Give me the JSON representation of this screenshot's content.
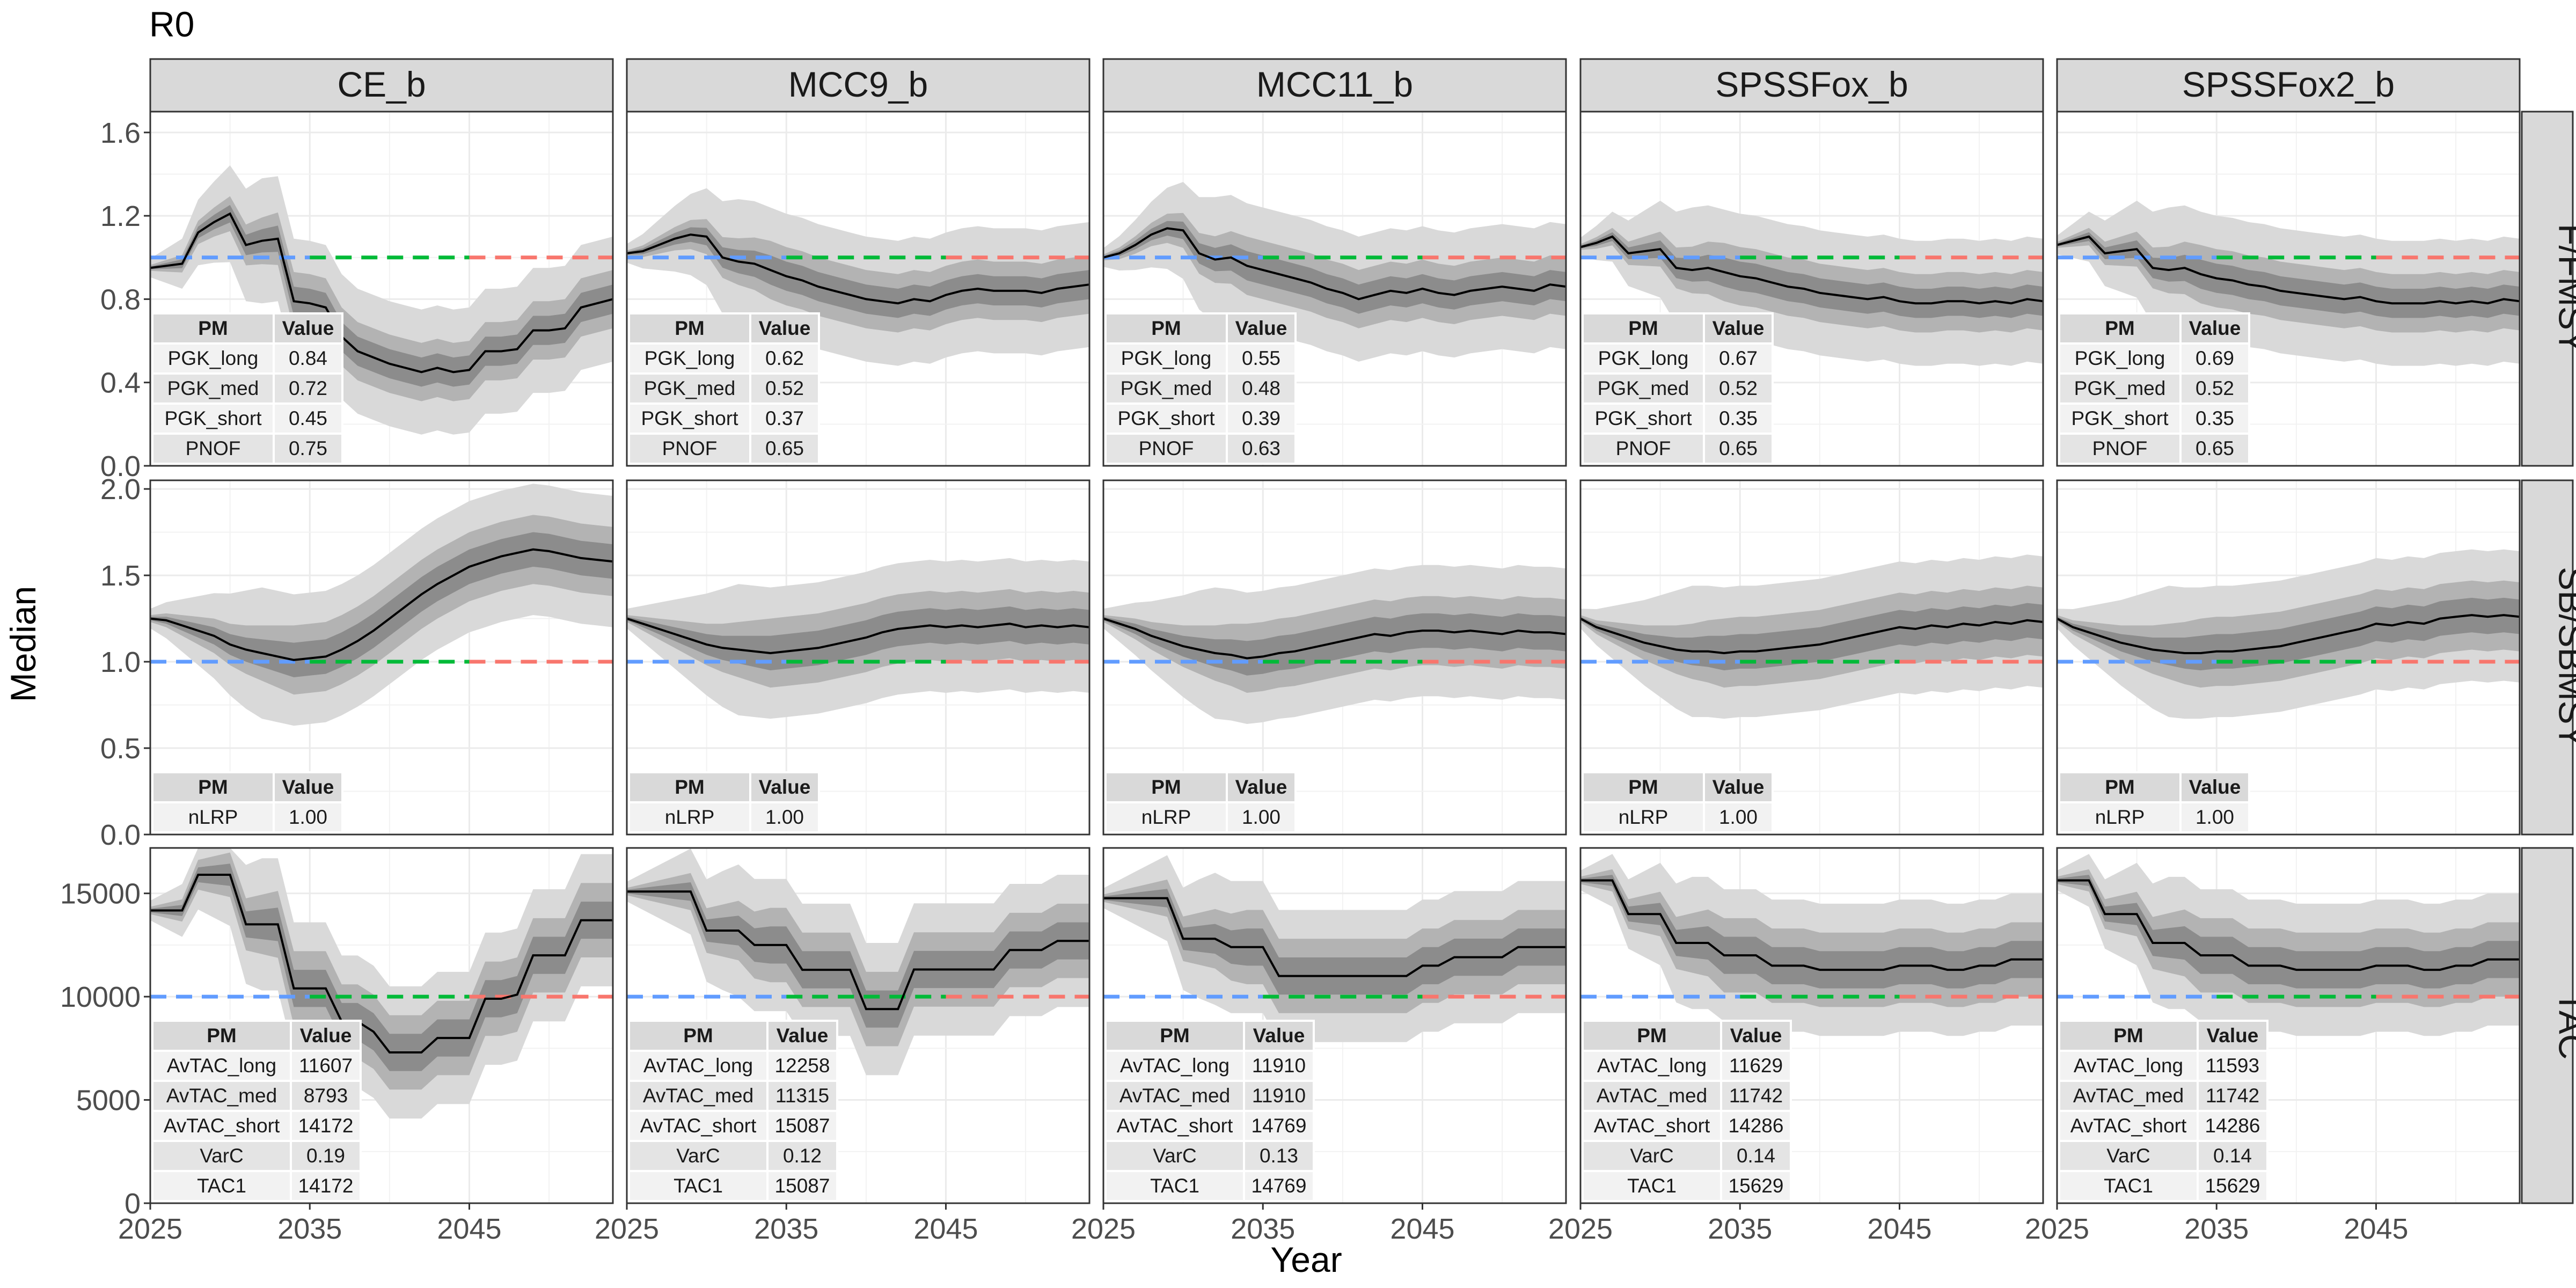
{
  "title": "R0",
  "chart_data": {
    "type": "line",
    "title": "R0",
    "xlabel": "Year",
    "ylabel": "Median",
    "x_ticks": [
      2025,
      2035,
      2045
    ],
    "xlim": [
      2025,
      2054
    ],
    "panels_cols": [
      "CE_b",
      "MCC9_b",
      "MCC11_b",
      "SPSSFox_b",
      "SPSSFox2_b"
    ],
    "panels_rows": [
      {
        "name": "F/FMSY",
        "ylim": [
          0,
          1.7
        ],
        "ticks": [
          "0.0",
          "0.4",
          "0.8",
          "1.2",
          "1.6"
        ],
        "tick_values": [
          0,
          0.4,
          0.8,
          1.2,
          1.6
        ],
        "ref": 1.0
      },
      {
        "name": "SB/SBMSY",
        "ylim": [
          0,
          2.05
        ],
        "ticks": [
          "0.0",
          "0.5",
          "1.0",
          "1.5",
          "2.0"
        ],
        "tick_values": [
          0,
          0.5,
          1.0,
          1.5,
          2.0
        ],
        "ref": 1.0
      },
      {
        "name": "TAC",
        "ylim": [
          0,
          17200
        ],
        "ticks": [
          "0",
          "5000",
          "10000",
          "15000"
        ],
        "tick_values": [
          0,
          5000,
          10000,
          15000
        ],
        "ref": 10000
      }
    ],
    "ref_line_colors": {
      "left": "#619cff",
      "middle": "#00ba38",
      "right": "#f8766d"
    },
    "band_colors": {
      "outer": "#d9d9d9",
      "mid": "#b3b3b3",
      "inner": "#8c8c8c"
    },
    "median": {
      "CE_b": {
        "F/FMSY": [
          0.95,
          0.96,
          0.97,
          1.12,
          1.17,
          1.21,
          1.06,
          1.08,
          1.09,
          0.79,
          0.78,
          0.76,
          0.62,
          0.55,
          0.52,
          0.49,
          0.47,
          0.45,
          0.47,
          0.45,
          0.46,
          0.55,
          0.55,
          0.56,
          0.65,
          0.65,
          0.66,
          0.76,
          0.78,
          0.8
        ],
        "SB/SBMSY": [
          1.25,
          1.24,
          1.21,
          1.18,
          1.15,
          1.1,
          1.07,
          1.05,
          1.03,
          1.01,
          1.02,
          1.03,
          1.07,
          1.12,
          1.18,
          1.25,
          1.32,
          1.39,
          1.45,
          1.5,
          1.55,
          1.58,
          1.61,
          1.63,
          1.65,
          1.64,
          1.62,
          1.6,
          1.59,
          1.58
        ],
        "TAC": [
          14172,
          14172,
          14172,
          15900,
          15900,
          15900,
          13500,
          13500,
          13500,
          10400,
          10400,
          10400,
          8793,
          8793,
          8300,
          7300,
          7300,
          7300,
          8000,
          8000,
          8000,
          9900,
          9900,
          10100,
          12000,
          12000,
          12000,
          13700,
          13700,
          13700
        ]
      },
      "MCC9_b": {
        "F/FMSY": [
          1.02,
          1.03,
          1.06,
          1.09,
          1.11,
          1.1,
          1.0,
          0.98,
          0.97,
          0.94,
          0.91,
          0.89,
          0.86,
          0.84,
          0.82,
          0.8,
          0.79,
          0.78,
          0.8,
          0.79,
          0.82,
          0.84,
          0.85,
          0.84,
          0.84,
          0.84,
          0.83,
          0.85,
          0.86,
          0.87
        ],
        "SB/SBMSY": [
          1.25,
          1.22,
          1.19,
          1.16,
          1.13,
          1.1,
          1.08,
          1.07,
          1.06,
          1.05,
          1.06,
          1.07,
          1.08,
          1.1,
          1.12,
          1.14,
          1.17,
          1.19,
          1.2,
          1.21,
          1.2,
          1.21,
          1.2,
          1.21,
          1.22,
          1.2,
          1.21,
          1.2,
          1.21,
          1.2
        ],
        "TAC": [
          15087,
          15087,
          15087,
          15087,
          15087,
          13200,
          13200,
          13200,
          12500,
          12500,
          12500,
          11300,
          11300,
          11300,
          11300,
          9400,
          9400,
          9400,
          11315,
          11315,
          11315,
          11315,
          11315,
          11315,
          12258,
          12258,
          12258,
          12700,
          12700,
          12700
        ]
      },
      "MCC11_b": {
        "F/FMSY": [
          1.0,
          1.02,
          1.06,
          1.11,
          1.14,
          1.13,
          1.02,
          0.99,
          1.0,
          0.96,
          0.94,
          0.92,
          0.9,
          0.88,
          0.85,
          0.83,
          0.8,
          0.82,
          0.84,
          0.83,
          0.85,
          0.83,
          0.82,
          0.84,
          0.85,
          0.86,
          0.85,
          0.84,
          0.87,
          0.86
        ],
        "SB/SBMSY": [
          1.25,
          1.22,
          1.19,
          1.15,
          1.12,
          1.09,
          1.07,
          1.05,
          1.04,
          1.02,
          1.03,
          1.05,
          1.06,
          1.08,
          1.1,
          1.12,
          1.14,
          1.16,
          1.15,
          1.17,
          1.18,
          1.18,
          1.17,
          1.18,
          1.17,
          1.16,
          1.18,
          1.17,
          1.17,
          1.16
        ],
        "TAC": [
          14769,
          14769,
          14769,
          14769,
          14769,
          12800,
          12800,
          12800,
          12400,
          12400,
          12400,
          11000,
          11000,
          11000,
          11000,
          11000,
          11000,
          11000,
          11000,
          11000,
          11500,
          11500,
          11910,
          11910,
          11910,
          11910,
          12400,
          12400,
          12400,
          12400
        ],
        "ref_unused": null
      },
      "SPSSFox_b": {
        "F/FMSY": [
          1.05,
          1.07,
          1.1,
          1.02,
          1.03,
          1.04,
          0.95,
          0.94,
          0.95,
          0.93,
          0.91,
          0.9,
          0.88,
          0.86,
          0.85,
          0.83,
          0.82,
          0.81,
          0.8,
          0.81,
          0.79,
          0.78,
          0.78,
          0.79,
          0.79,
          0.78,
          0.79,
          0.78,
          0.8,
          0.79
        ],
        "SB/SBMSY": [
          1.25,
          1.2,
          1.17,
          1.14,
          1.11,
          1.09,
          1.07,
          1.06,
          1.06,
          1.05,
          1.06,
          1.06,
          1.07,
          1.08,
          1.09,
          1.1,
          1.12,
          1.14,
          1.16,
          1.18,
          1.2,
          1.19,
          1.21,
          1.2,
          1.22,
          1.21,
          1.23,
          1.22,
          1.24,
          1.23
        ],
        "TAC": [
          15629,
          15629,
          15629,
          14000,
          14000,
          14000,
          12600,
          12600,
          12600,
          12000,
          12000,
          12000,
          11500,
          11500,
          11500,
          11300,
          11300,
          11300,
          11300,
          11300,
          11500,
          11500,
          11500,
          11300,
          11300,
          11500,
          11500,
          11800,
          11800,
          11800
        ]
      },
      "SPSSFox2_b": {
        "F/FMSY": [
          1.06,
          1.08,
          1.1,
          1.02,
          1.03,
          1.04,
          0.95,
          0.94,
          0.95,
          0.92,
          0.9,
          0.89,
          0.87,
          0.86,
          0.84,
          0.83,
          0.82,
          0.81,
          0.8,
          0.81,
          0.79,
          0.78,
          0.78,
          0.78,
          0.79,
          0.78,
          0.79,
          0.78,
          0.8,
          0.79
        ],
        "SB/SBMSY": [
          1.25,
          1.2,
          1.17,
          1.14,
          1.11,
          1.09,
          1.07,
          1.06,
          1.05,
          1.05,
          1.06,
          1.06,
          1.07,
          1.08,
          1.09,
          1.11,
          1.13,
          1.15,
          1.17,
          1.19,
          1.22,
          1.21,
          1.23,
          1.22,
          1.25,
          1.26,
          1.27,
          1.26,
          1.27,
          1.26
        ],
        "TAC": [
          15629,
          15629,
          15629,
          14000,
          14000,
          14000,
          12600,
          12600,
          12600,
          12000,
          12000,
          12000,
          11500,
          11500,
          11500,
          11300,
          11300,
          11300,
          11300,
          11300,
          11500,
          11500,
          11500,
          11300,
          11300,
          11500,
          11500,
          11800,
          11800,
          11800
        ]
      }
    },
    "band_widths": {
      "F/FMSY": {
        "outer": 0.3,
        "mid": 0.14,
        "inner": 0.07
      },
      "SB/SBMSY": {
        "outer": 0.38,
        "mid": 0.2,
        "inner": 0.1
      },
      "TAC": {
        "outer": 3200,
        "mid": 1800,
        "inner": 900
      }
    },
    "tables": {
      "header": [
        "PM",
        "Value"
      ],
      "CE_b": {
        "F/FMSY": [
          [
            "PGK_long",
            "0.84"
          ],
          [
            "PGK_med",
            "0.72"
          ],
          [
            "PGK_short",
            "0.45"
          ],
          [
            "PNOF",
            "0.75"
          ]
        ],
        "SB/SBMSY": [
          [
            "nLRP",
            "1.00"
          ]
        ],
        "TAC": [
          [
            "AvTAC_long",
            "11607"
          ],
          [
            "AvTAC_med",
            "8793"
          ],
          [
            "AvTAC_short",
            "14172"
          ],
          [
            "VarC",
            "0.19"
          ],
          [
            "TAC1",
            "14172"
          ]
        ]
      },
      "MCC9_b": {
        "F/FMSY": [
          [
            "PGK_long",
            "0.62"
          ],
          [
            "PGK_med",
            "0.52"
          ],
          [
            "PGK_short",
            "0.37"
          ],
          [
            "PNOF",
            "0.65"
          ]
        ],
        "SB/SBMSY": [
          [
            "nLRP",
            "1.00"
          ]
        ],
        "TAC": [
          [
            "AvTAC_long",
            "12258"
          ],
          [
            "AvTAC_med",
            "11315"
          ],
          [
            "AvTAC_short",
            "15087"
          ],
          [
            "VarC",
            "0.12"
          ],
          [
            "TAC1",
            "15087"
          ]
        ]
      },
      "MCC11_b": {
        "F/FMSY": [
          [
            "PGK_long",
            "0.55"
          ],
          [
            "PGK_med",
            "0.48"
          ],
          [
            "PGK_short",
            "0.39"
          ],
          [
            "PNOF",
            "0.63"
          ]
        ],
        "SB/SBMSY": [
          [
            "nLRP",
            "1.00"
          ]
        ],
        "TAC": [
          [
            "AvTAC_long",
            "11910"
          ],
          [
            "AvTAC_med",
            "11910"
          ],
          [
            "AvTAC_short",
            "14769"
          ],
          [
            "VarC",
            "0.13"
          ],
          [
            "TAC1",
            "14769"
          ]
        ]
      },
      "SPSSFox_b": {
        "F/FMSY": [
          [
            "PGK_long",
            "0.67"
          ],
          [
            "PGK_med",
            "0.52"
          ],
          [
            "PGK_short",
            "0.35"
          ],
          [
            "PNOF",
            "0.65"
          ]
        ],
        "SB/SBMSY": [
          [
            "nLRP",
            "1.00"
          ]
        ],
        "TAC": [
          [
            "AvTAC_long",
            "11629"
          ],
          [
            "AvTAC_med",
            "11742"
          ],
          [
            "AvTAC_short",
            "14286"
          ],
          [
            "VarC",
            "0.14"
          ],
          [
            "TAC1",
            "15629"
          ]
        ]
      },
      "SPSSFox2_b": {
        "F/FMSY": [
          [
            "PGK_long",
            "0.69"
          ],
          [
            "PGK_med",
            "0.52"
          ],
          [
            "PGK_short",
            "0.35"
          ],
          [
            "PNOF",
            "0.65"
          ]
        ],
        "SB/SBMSY": [
          [
            "nLRP",
            "1.00"
          ]
        ],
        "TAC": [
          [
            "AvTAC_long",
            "11593"
          ],
          [
            "AvTAC_med",
            "11742"
          ],
          [
            "AvTAC_short",
            "14286"
          ],
          [
            "VarC",
            "0.14"
          ],
          [
            "TAC1",
            "15629"
          ]
        ]
      }
    },
    "grid": true,
    "legend": "none"
  }
}
